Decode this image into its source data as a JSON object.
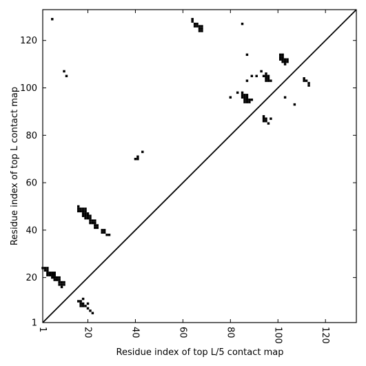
{
  "chart_data": {
    "type": "heatmap",
    "title": "",
    "xlabel": "Residue index of top L/5 contact map",
    "ylabel": "Residue index of top L contact map",
    "xlim": [
      1,
      133
    ],
    "ylim": [
      1,
      133
    ],
    "xticks": [
      1,
      20,
      40,
      60,
      80,
      100,
      120
    ],
    "yticks": [
      1,
      20,
      40,
      60,
      80,
      100,
      120
    ],
    "xtick_labels": [
      "1",
      "20",
      "40",
      "60",
      "80",
      "100",
      "120"
    ],
    "ytick_labels": [
      "1",
      "20",
      "40",
      "60",
      "80",
      "100",
      "120"
    ],
    "tick_label_rotation_x": 270,
    "grid": false,
    "diagonal_line": true,
    "mark_color": "#000000",
    "lower_triangle_contacts": [
      [
        1,
        24
      ],
      [
        2,
        24
      ],
      [
        3,
        24
      ],
      [
        3,
        23
      ],
      [
        2,
        23
      ],
      [
        3,
        22
      ],
      [
        4,
        22
      ],
      [
        5,
        22
      ],
      [
        6,
        22
      ],
      [
        3,
        21
      ],
      [
        4,
        21
      ],
      [
        5,
        21
      ],
      [
        6,
        21
      ],
      [
        5,
        20
      ],
      [
        6,
        20
      ],
      [
        7,
        20
      ],
      [
        8,
        20
      ],
      [
        6,
        19
      ],
      [
        7,
        19
      ],
      [
        8,
        19
      ],
      [
        8,
        18
      ],
      [
        9,
        18
      ],
      [
        10,
        18
      ],
      [
        8,
        17
      ],
      [
        9,
        17
      ],
      [
        10,
        17
      ],
      [
        9,
        16
      ],
      [
        16,
        50
      ],
      [
        16,
        49
      ],
      [
        17,
        49
      ],
      [
        18,
        49
      ],
      [
        19,
        49
      ],
      [
        16,
        48
      ],
      [
        17,
        48
      ],
      [
        18,
        48
      ],
      [
        19,
        48
      ],
      [
        18,
        47
      ],
      [
        19,
        47
      ],
      [
        20,
        47
      ],
      [
        18,
        46
      ],
      [
        19,
        46
      ],
      [
        20,
        46
      ],
      [
        21,
        46
      ],
      [
        19,
        45
      ],
      [
        20,
        45
      ],
      [
        21,
        45
      ],
      [
        21,
        44
      ],
      [
        22,
        44
      ],
      [
        23,
        44
      ],
      [
        21,
        43
      ],
      [
        22,
        43
      ],
      [
        23,
        43
      ],
      [
        23,
        42
      ],
      [
        24,
        42
      ],
      [
        23,
        41
      ],
      [
        24,
        41
      ],
      [
        26,
        40
      ],
      [
        27,
        40
      ],
      [
        26,
        39
      ],
      [
        27,
        39
      ],
      [
        28,
        38
      ],
      [
        29,
        38
      ],
      [
        16,
        10
      ],
      [
        17,
        10
      ],
      [
        18,
        11
      ],
      [
        17,
        9
      ],
      [
        18,
        9
      ],
      [
        17,
        8
      ],
      [
        18,
        8
      ],
      [
        19,
        8
      ],
      [
        20,
        9
      ],
      [
        20,
        7
      ],
      [
        21,
        6
      ],
      [
        22,
        5
      ],
      [
        40,
        70
      ],
      [
        41,
        70
      ],
      [
        41,
        71
      ],
      [
        43,
        73
      ]
    ],
    "upper_triangle_contacts": [
      [
        5,
        129
      ],
      [
        64,
        129
      ],
      [
        64,
        128
      ],
      [
        65,
        127
      ],
      [
        66,
        127
      ],
      [
        65,
        126
      ],
      [
        66,
        126
      ],
      [
        67,
        126
      ],
      [
        68,
        126
      ],
      [
        67,
        125
      ],
      [
        68,
        125
      ],
      [
        67,
        124
      ],
      [
        68,
        124
      ],
      [
        85,
        127
      ],
      [
        10,
        107
      ],
      [
        11,
        105
      ],
      [
        87,
        114
      ],
      [
        101,
        114
      ],
      [
        102,
        114
      ],
      [
        101,
        113
      ],
      [
        102,
        113
      ],
      [
        101,
        112
      ],
      [
        102,
        112
      ],
      [
        103,
        112
      ],
      [
        104,
        112
      ],
      [
        102,
        111
      ],
      [
        103,
        111
      ],
      [
        104,
        111
      ],
      [
        103,
        110
      ],
      [
        93,
        107
      ],
      [
        95,
        106
      ],
      [
        89,
        105
      ],
      [
        91,
        105
      ],
      [
        94,
        105
      ],
      [
        95,
        105
      ],
      [
        96,
        105
      ],
      [
        95,
        104
      ],
      [
        96,
        104
      ],
      [
        95,
        103
      ],
      [
        96,
        103
      ],
      [
        97,
        103
      ],
      [
        87,
        103
      ],
      [
        111,
        104
      ],
      [
        111,
        103
      ],
      [
        112,
        103
      ],
      [
        113,
        102
      ],
      [
        113,
        101
      ],
      [
        83,
        98
      ],
      [
        85,
        98
      ],
      [
        85,
        97
      ],
      [
        86,
        97
      ],
      [
        87,
        97
      ],
      [
        85,
        96
      ],
      [
        86,
        96
      ],
      [
        87,
        96
      ],
      [
        80,
        96
      ],
      [
        103,
        96
      ],
      [
        86,
        95
      ],
      [
        87,
        95
      ],
      [
        88,
        95
      ],
      [
        89,
        95
      ],
      [
        86,
        94
      ],
      [
        87,
        94
      ],
      [
        88,
        94
      ],
      [
        107,
        93
      ],
      [
        94,
        88
      ],
      [
        94,
        87
      ],
      [
        95,
        87
      ],
      [
        97,
        87
      ],
      [
        94,
        86
      ],
      [
        95,
        86
      ],
      [
        96,
        85
      ]
    ]
  }
}
